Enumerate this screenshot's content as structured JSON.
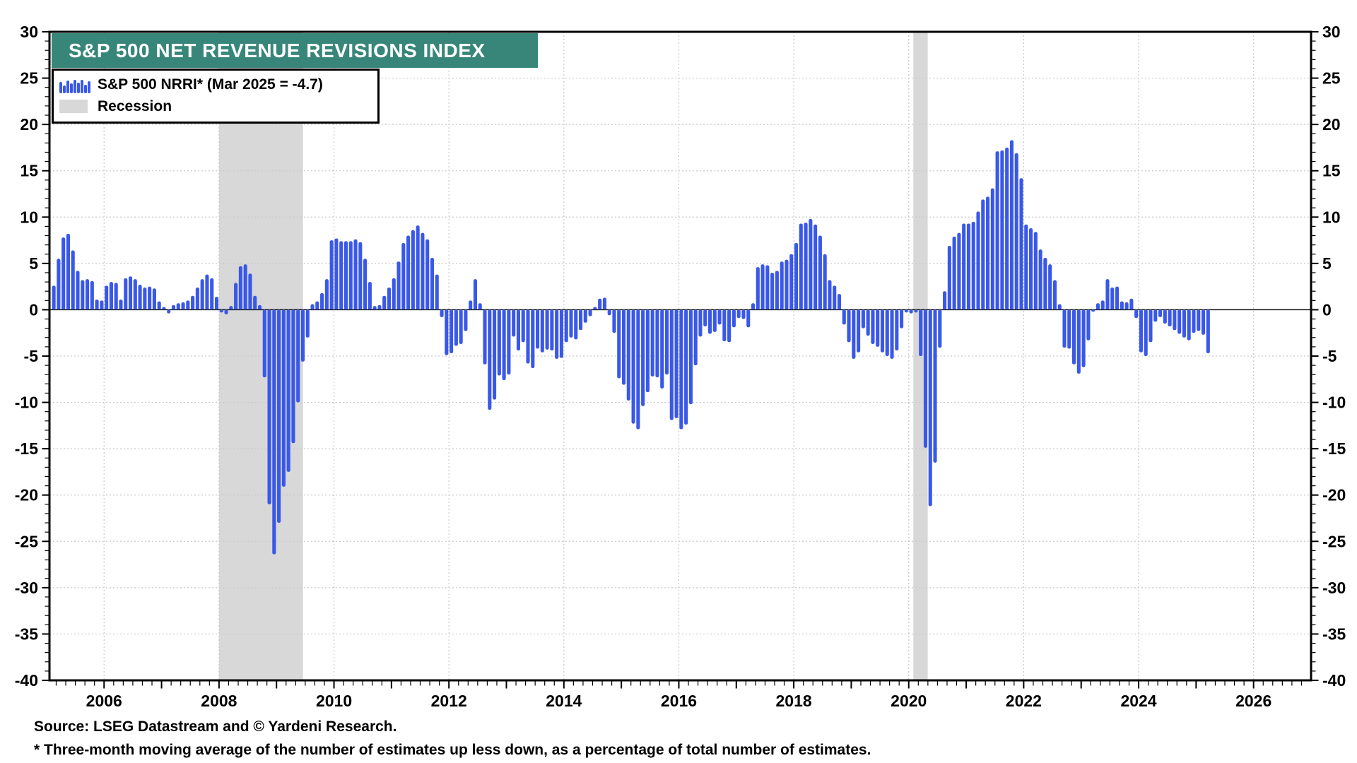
{
  "chart_data": {
    "type": "bar",
    "title": "S&P 500 NET REVENUE REVISIONS INDEX",
    "legend": [
      {
        "label": "S&P 500 NRRI* (Mar 2025 = -4.7)",
        "color": "#3a58e8"
      },
      {
        "label": "Recession",
        "color": "#d8d8d8"
      }
    ],
    "colors": {
      "bar": "#3a58e8",
      "recession": "#d8d8d8",
      "banner": "#38867a",
      "grid": "#c9c9c9",
      "axis": "#000000"
    },
    "x_axis": {
      "min": 2005.05,
      "max": 2027.0,
      "label_years": [
        2006,
        2008,
        2010,
        2012,
        2014,
        2016,
        2018,
        2020,
        2022,
        2024,
        2026
      ],
      "minor_tick_months": 2
    },
    "y_axis": {
      "min": -40,
      "max": 30,
      "major_step": 5,
      "minor_step": 1,
      "tick_labels": [
        "30",
        "25",
        "20",
        "15",
        "10",
        "5",
        "0",
        "-5",
        "-10",
        "-15",
        "-20",
        "-25",
        "-30",
        "-35",
        "-40"
      ]
    },
    "recessions": [
      {
        "start": 2008.0,
        "end": 2009.46
      },
      {
        "start": 2020.08,
        "end": 2020.33
      }
    ],
    "series": {
      "name": "S&P 500 NRRI",
      "start": "2005-02",
      "end": "2025-03",
      "frequency": "monthly",
      "values": [
        2.6,
        5.5,
        7.8,
        8.2,
        6.4,
        4.2,
        3.2,
        3.3,
        3.1,
        1.1,
        1.0,
        2.6,
        3.0,
        2.9,
        1.1,
        3.4,
        3.6,
        3.3,
        2.7,
        2.4,
        2.5,
        2.3,
        0.9,
        0.3,
        -0.4,
        0.5,
        0.7,
        0.8,
        1.0,
        1.5,
        2.4,
        3.3,
        3.8,
        3.4,
        1.4,
        -0.3,
        -0.5,
        0.4,
        2.9,
        4.7,
        4.9,
        3.9,
        1.5,
        0.5,
        -7.3,
        -21.0,
        -26.4,
        -23.0,
        -19.1,
        -17.5,
        -14.4,
        -10.0,
        -5.6,
        -3.0,
        0.6,
        0.9,
        1.8,
        3.3,
        7.5,
        7.7,
        7.4,
        7.4,
        7.4,
        7.6,
        7.3,
        5.5,
        3.0,
        0.4,
        0.5,
        1.5,
        2.4,
        3.4,
        5.2,
        7.2,
        8.0,
        8.6,
        9.1,
        8.3,
        7.6,
        5.6,
        3.8,
        -0.8,
        -4.9,
        -4.7,
        -3.9,
        -3.7,
        -2.3,
        1.0,
        3.3,
        0.7,
        -5.9,
        -10.8,
        -9.7,
        -7.1,
        -7.6,
        -7.0,
        -2.9,
        -4.4,
        -3.5,
        -5.8,
        -6.3,
        -4.2,
        -4.6,
        -4.3,
        -4.4,
        -5.3,
        -5.2,
        -3.5,
        -3.0,
        -3.2,
        -2.2,
        -1.4,
        -0.7,
        0.3,
        1.2,
        1.3,
        -0.6,
        -2.5,
        -7.4,
        -8.1,
        -9.8,
        -12.3,
        -12.9,
        -10.4,
        -8.9,
        -7.2,
        -7.3,
        -8.5,
        -7.0,
        -11.9,
        -11.7,
        -12.9,
        -12.4,
        -10.2,
        -6.0,
        -2.9,
        -1.8,
        -2.6,
        -2.4,
        -1.6,
        -3.4,
        -3.5,
        -1.9,
        -0.9,
        -1.0,
        -1.9,
        0.7,
        4.6,
        4.9,
        4.8,
        4.0,
        4.2,
        5.2,
        5.4,
        6.0,
        7.2,
        9.3,
        9.4,
        9.8,
        9.2,
        8.0,
        6.0,
        3.2,
        2.6,
        1.7,
        -1.6,
        -3.5,
        -5.3,
        -4.6,
        -2.0,
        -2.8,
        -3.7,
        -4.0,
        -4.6,
        -5.0,
        -5.3,
        -4.4,
        -2.0,
        -0.3,
        -0.4,
        -0.3,
        -5.0,
        -14.9,
        -21.2,
        -16.5,
        -4.1,
        2.0,
        6.9,
        7.9,
        8.3,
        9.3,
        9.3,
        9.5,
        10.6,
        11.9,
        12.2,
        13.1,
        17.1,
        17.2,
        17.5,
        18.3,
        16.9,
        14.2,
        9.2,
        8.8,
        8.4,
        6.5,
        5.6,
        4.9,
        3.2,
        0.6,
        -4.1,
        -4.2,
        -5.9,
        -6.9,
        -6.2,
        -3.3,
        -0.2,
        0.7,
        1.0,
        3.3,
        2.4,
        2.5,
        0.9,
        0.8,
        1.2,
        -0.9,
        -4.6,
        -5.0,
        -3.5,
        -1.3,
        -0.8,
        -1.5,
        -1.8,
        -2.2,
        -2.6,
        -3.0,
        -3.3,
        -2.5,
        -2.3,
        -2.7,
        -4.7
      ]
    },
    "annotations": {
      "latest_point": "Mar 2025 = -4.7"
    }
  },
  "footer": {
    "source": "Source: LSEG Datastream and © Yardeni Research.",
    "note": "* Three-month moving average of the number of estimates up less down, as a percentage of total number of estimates."
  }
}
